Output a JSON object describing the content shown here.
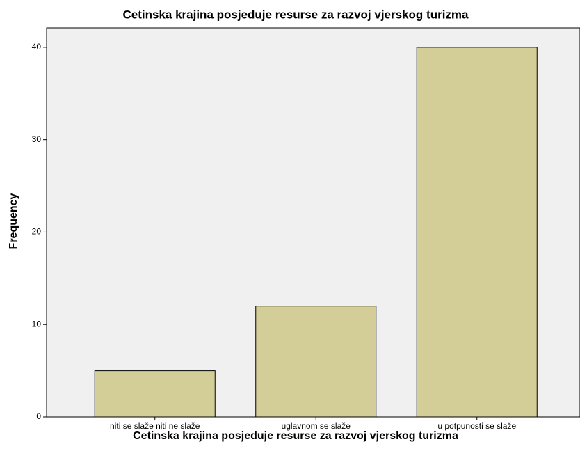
{
  "chart_data": {
    "type": "bar",
    "title": "Cetinska krajina posjeduje resurse za razvoj vjerskog turizma",
    "x_label": "Cetinska krajina posjeduje resurse za razvoj vjerskog turizma",
    "y_label": "Frequency",
    "categories": [
      "niti se slaže niti ne slaže",
      "uglavnom se slaže",
      "u potpunosti se slaže"
    ],
    "values": [
      5,
      12,
      40
    ],
    "color": "#d3ce97",
    "ylim": [
      0,
      42.1
    ],
    "yticks": [
      0,
      10,
      20,
      30,
      40
    ],
    "grid": false
  }
}
